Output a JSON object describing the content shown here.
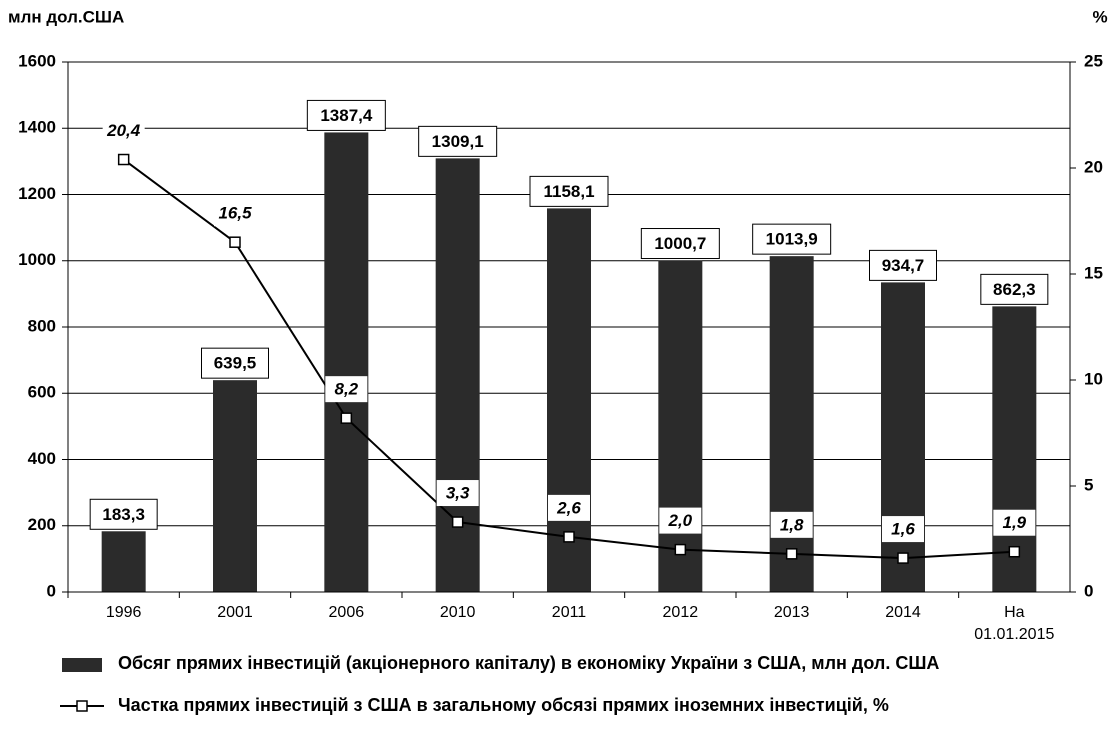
{
  "chart_data": {
    "type": "bar",
    "y_label": "млн дол.США",
    "y2_label": "%",
    "categories": [
      "1996",
      "2001",
      "2006",
      "2010",
      "2011",
      "2012",
      "2013",
      "2014",
      "На 01.01.2015"
    ],
    "series": [
      {
        "name": "Обсяг прямих інвестицій (акціонерного капіталу) в економіку України з США, млн дол. США",
        "color": "#2b2b2b",
        "values": [
          183.3,
          639.5,
          1387.4,
          1309.1,
          1158.1,
          1000.7,
          1013.9,
          934.7,
          862.3
        ],
        "value_labels": [
          "183,3",
          "639,5",
          "1387,4",
          "1309,1",
          "1158,1",
          "1000,7",
          "1013,9",
          "934,7",
          "862,3"
        ]
      },
      {
        "name": "Частка прямих  інвестицій з США в загальному обсязі прямих іноземних інвестицій, %",
        "color": "#000000",
        "type": "line",
        "axis": "y2",
        "values": [
          20.4,
          16.5,
          8.2,
          3.3,
          2.6,
          2.0,
          1.8,
          1.6,
          1.9
        ],
        "value_labels": [
          "20,4",
          "16,5",
          "8,2",
          "3,3",
          "2,6",
          "2,0",
          "1,8",
          "1,6",
          "1,9"
        ]
      }
    ],
    "ylim": [
      0,
      1600
    ],
    "yticks": [
      0,
      200,
      400,
      600,
      800,
      1000,
      1200,
      1400,
      1600
    ],
    "y2lim": [
      0,
      25
    ],
    "y2ticks": [
      0,
      5,
      10,
      15,
      20,
      25
    ],
    "grid": true
  }
}
